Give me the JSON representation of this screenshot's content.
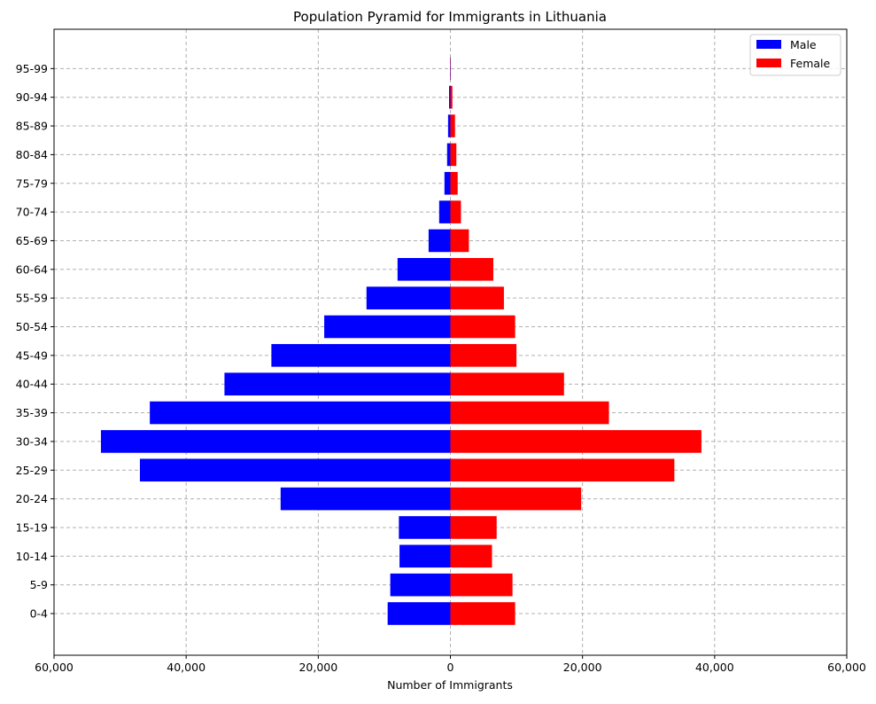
{
  "chart_data": {
    "type": "bar",
    "orientation": "horizontal",
    "style": "population-pyramid",
    "title": "Population Pyramid for Immigrants in Lithuania",
    "xlabel": "Number of Immigrants",
    "ylabel": "",
    "xlim": [
      -60000,
      60000
    ],
    "x_ticks": [
      -60000,
      -40000,
      -20000,
      0,
      20000,
      40000,
      60000
    ],
    "x_tick_labels": [
      "60,000",
      "40,000",
      "20,000",
      "0",
      "20,000",
      "40,000",
      "60,000"
    ],
    "categories": [
      "0-4",
      "5-9",
      "10-14",
      "15-19",
      "20-24",
      "25-29",
      "30-34",
      "35-39",
      "40-44",
      "45-49",
      "50-54",
      "55-59",
      "60-64",
      "65-69",
      "70-74",
      "75-79",
      "80-84",
      "85-89",
      "90-94",
      "95-99"
    ],
    "series": [
      {
        "name": "Male",
        "color": "#0000ff",
        "side": "left",
        "values": [
          9500,
          9100,
          7700,
          7800,
          25700,
          47000,
          52900,
          45500,
          34200,
          27100,
          19100,
          12700,
          8000,
          3300,
          1700,
          900,
          500,
          350,
          200,
          50
        ]
      },
      {
        "name": "Female",
        "color": "#ff0000",
        "side": "right",
        "values": [
          9800,
          9400,
          6300,
          7000,
          19800,
          33900,
          38000,
          24000,
          17200,
          10000,
          9800,
          8100,
          6500,
          2800,
          1600,
          1100,
          900,
          700,
          300,
          50
        ]
      }
    ],
    "grid": true,
    "grid_style": "dashed",
    "legend_position": "top-right"
  }
}
